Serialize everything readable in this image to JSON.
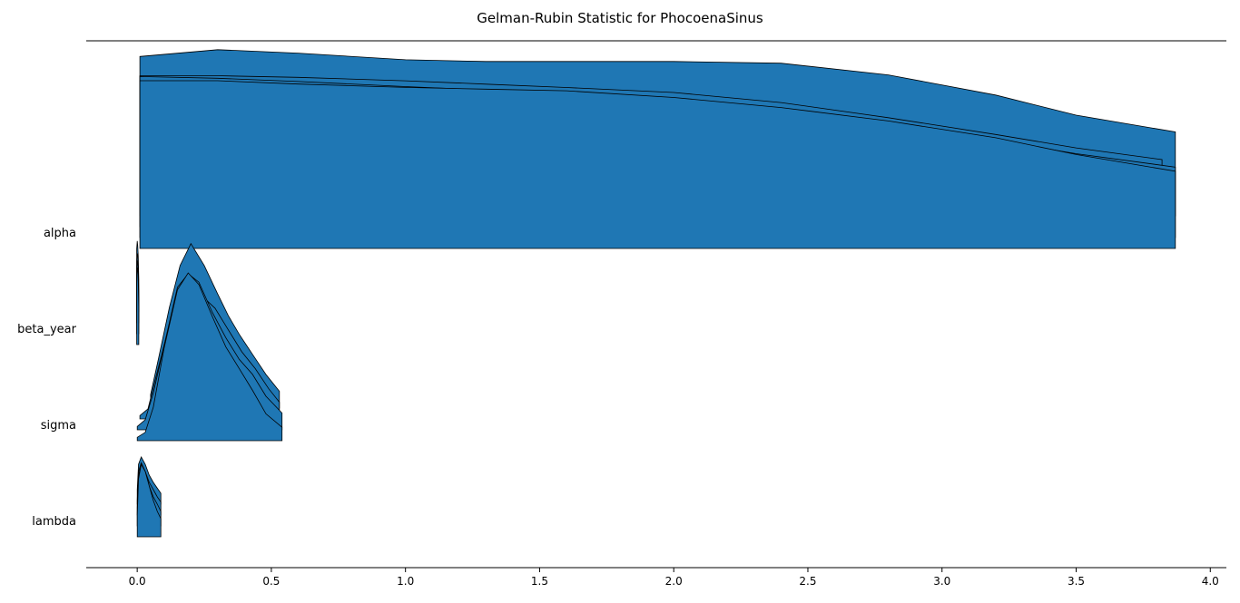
{
  "chart_data": {
    "type": "ridgeline",
    "title": "Gelman-Rubin Statistic for PhocoenaSinus",
    "xlabel": "",
    "ylabel": "",
    "xlim": [
      -0.19,
      4.06
    ],
    "x_ticks": [
      0.0,
      0.5,
      1.0,
      1.5,
      2.0,
      2.5,
      3.0,
      3.5,
      4.0
    ],
    "grid": false,
    "color": "#1f77b4",
    "variables": [
      {
        "name": "alpha",
        "chains": [
          {
            "x": [
              0.01,
              0.3,
              0.6,
              1.0,
              1.3,
              1.6,
              2.0,
              2.4,
              2.8,
              3.2,
              3.5,
              3.87
            ],
            "y": [
              1.0,
              1.0,
              0.98,
              0.96,
              0.95,
              0.94,
              0.9,
              0.84,
              0.76,
              0.66,
              0.56,
              0.46
            ]
          },
          {
            "x": [
              0.01,
              0.3,
              0.6,
              1.0,
              1.3,
              1.6,
              2.0,
              2.4,
              2.8,
              3.2,
              3.5,
              3.87
            ],
            "y": [
              0.96,
              0.95,
              0.93,
              0.9,
              0.88,
              0.87,
              0.83,
              0.77,
              0.68,
              0.58,
              0.5,
              0.42
            ]
          },
          {
            "x": [
              0.01,
              0.3,
              0.6,
              1.0,
              1.3,
              1.6,
              2.0,
              2.4,
              2.8,
              3.2,
              3.5,
              3.82
            ],
            "y": [
              0.9,
              0.9,
              0.89,
              0.87,
              0.85,
              0.83,
              0.8,
              0.74,
              0.65,
              0.55,
              0.47,
              0.4
            ]
          },
          {
            "x": [
              0.01,
              0.3,
              0.6,
              1.0,
              1.3,
              1.6,
              2.0,
              2.4,
              2.8,
              3.2,
              3.5,
              3.87
            ],
            "y": [
              0.95,
              0.99,
              0.97,
              0.93,
              0.92,
              0.92,
              0.92,
              0.91,
              0.84,
              0.72,
              0.6,
              0.5
            ]
          }
        ]
      },
      {
        "name": "beta_year",
        "chains": [
          {
            "x": [
              -0.002,
              0.0,
              0.002,
              0.004,
              0.006
            ],
            "y": [
              0.9,
              1.0,
              0.95,
              0.8,
              0.5
            ]
          },
          {
            "x": [
              -0.002,
              0.0,
              0.002,
              0.004,
              0.006
            ],
            "y": [
              0.85,
              0.95,
              0.9,
              0.75,
              0.45
            ]
          },
          {
            "x": [
              -0.002,
              0.0,
              0.002,
              0.004,
              0.006
            ],
            "y": [
              0.8,
              0.9,
              0.88,
              0.7,
              0.4
            ]
          },
          {
            "x": [
              -0.002,
              0.0,
              0.002,
              0.004,
              0.006
            ],
            "y": [
              0.82,
              0.92,
              0.86,
              0.72,
              0.42
            ]
          }
        ]
      },
      {
        "name": "sigma",
        "chains": [
          {
            "x": [
              0.0,
              0.03,
              0.06,
              0.1,
              0.15,
              0.19,
              0.23,
              0.28,
              0.33,
              0.38,
              0.43,
              0.48,
              0.54
            ],
            "y": [
              0.02,
              0.05,
              0.2,
              0.55,
              0.9,
              1.0,
              0.93,
              0.74,
              0.56,
              0.43,
              0.3,
              0.16,
              0.08
            ]
          },
          {
            "x": [
              0.0,
              0.03,
              0.06,
              0.1,
              0.15,
              0.19,
              0.23,
              0.28,
              0.33,
              0.38,
              0.43,
              0.48,
              0.54
            ],
            "y": [
              0.02,
              0.06,
              0.22,
              0.5,
              0.85,
              0.93,
              0.88,
              0.7,
              0.55,
              0.42,
              0.33,
              0.2,
              0.1
            ]
          },
          {
            "x": [
              0.01,
              0.04,
              0.07,
              0.11,
              0.15,
              0.2,
              0.25,
              0.29,
              0.34,
              0.39,
              0.44,
              0.49,
              0.53
            ],
            "y": [
              0.02,
              0.06,
              0.25,
              0.5,
              0.7,
              0.8,
              0.72,
              0.66,
              0.53,
              0.4,
              0.3,
              0.18,
              0.1
            ]
          },
          {
            "x": [
              0.05,
              0.08,
              0.12,
              0.16,
              0.2,
              0.25,
              0.3,
              0.34,
              0.38,
              0.43,
              0.48,
              0.53
            ],
            "y": [
              0.08,
              0.3,
              0.6,
              0.85,
              0.98,
              0.85,
              0.68,
              0.55,
              0.44,
              0.32,
              0.2,
              0.1
            ]
          }
        ]
      },
      {
        "name": "lambda",
        "chains": [
          {
            "x": [
              0.0,
              0.005,
              0.015,
              0.03,
              0.045,
              0.06,
              0.075,
              0.088
            ],
            "y": [
              0.3,
              0.8,
              1.0,
              0.9,
              0.7,
              0.5,
              0.35,
              0.25
            ]
          },
          {
            "x": [
              0.0,
              0.005,
              0.015,
              0.03,
              0.045,
              0.06,
              0.075,
              0.088
            ],
            "y": [
              0.25,
              0.7,
              0.85,
              0.75,
              0.55,
              0.4,
              0.3,
              0.2
            ]
          },
          {
            "x": [
              0.0,
              0.005,
              0.015,
              0.03,
              0.045,
              0.06,
              0.075,
              0.088
            ],
            "y": [
              0.2,
              0.6,
              0.72,
              0.6,
              0.45,
              0.35,
              0.25,
              0.18
            ]
          },
          {
            "x": [
              0.0,
              0.005,
              0.015,
              0.03,
              0.045,
              0.06,
              0.075,
              0.088
            ],
            "y": [
              0.2,
              0.55,
              0.65,
              0.55,
              0.4,
              0.3,
              0.22,
              0.15
            ]
          }
        ]
      }
    ]
  }
}
